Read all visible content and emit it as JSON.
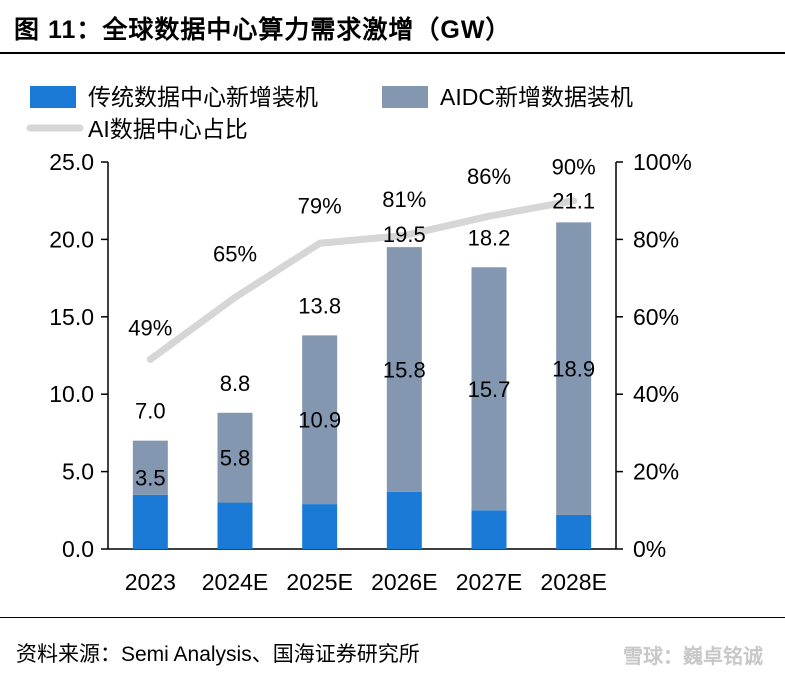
{
  "title": "图 11：全球数据中心算力需求激增（GW）",
  "source": "资料来源：Semi Analysis、国海证券研究所",
  "footer_watermark": "雪球：巍卓铭诚",
  "colors": {
    "traditional": "#1a7ad6",
    "aidc": "#8497b0",
    "ai_share_line": "#d6d6d6",
    "axis": "#000000"
  },
  "chart_data": {
    "type": "bar",
    "stacked": true,
    "categories": [
      "2023",
      "2024E",
      "2025E",
      "2026E",
      "2027E",
      "2028E"
    ],
    "series": [
      {
        "name": "传统数据中心新增装机",
        "type": "bar",
        "axis": "left",
        "values": [
          3.5,
          3.0,
          2.9,
          3.7,
          2.5,
          2.2
        ]
      },
      {
        "name": "AIDC新增数据装机",
        "type": "bar",
        "axis": "left",
        "values": [
          3.5,
          5.8,
          10.9,
          15.8,
          15.7,
          18.9
        ]
      },
      {
        "name": "AI数据中心占比",
        "type": "line",
        "axis": "right",
        "values": [
          49,
          65,
          79,
          81,
          86,
          90
        ]
      }
    ],
    "bar_inner_labels": [
      "3.5",
      "5.8",
      "10.9",
      "15.8",
      "15.7",
      "18.9"
    ],
    "total_labels": [
      "7.0",
      "8.8",
      "13.8",
      "19.5",
      "18.2",
      "21.1"
    ],
    "share_labels": [
      "49%",
      "65%",
      "79%",
      "81%",
      "86%",
      "90%"
    ],
    "left_axis": {
      "range": [
        0,
        25
      ],
      "ticks": [
        "0.0",
        "5.0",
        "10.0",
        "15.0",
        "20.0",
        "25.0"
      ]
    },
    "right_axis": {
      "range": [
        0,
        100
      ],
      "ticks": [
        "0%",
        "20%",
        "40%",
        "60%",
        "80%",
        "100%"
      ]
    },
    "legend_position": "top-left",
    "grid": false
  }
}
